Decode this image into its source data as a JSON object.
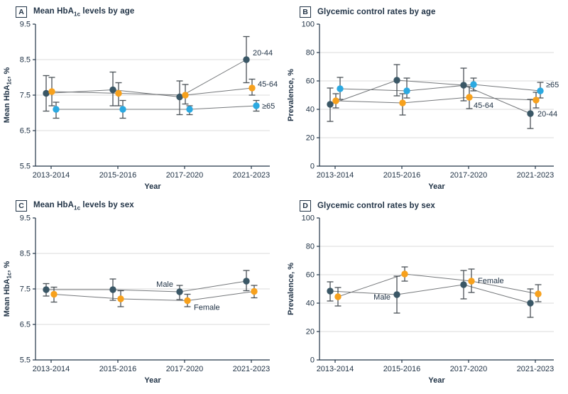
{
  "colors": {
    "series_dark": "#3A5766",
    "series_orange": "#F7A11D",
    "series_blue": "#2BA9E1",
    "error_bar": "#4A5257",
    "connector": "#75787B",
    "grid": "#DBDBDB",
    "axis": "#223447",
    "text": "#223447",
    "background": "#FFFFFF"
  },
  "chart_data": [
    {
      "type": "line",
      "panel": "A",
      "title": "Mean HbA1c levels by age",
      "xlabel": "Year",
      "ylabel": "Mean HbA1c, %",
      "ylim": [
        5.5,
        9.5
      ],
      "grid": true,
      "error_bars": true,
      "legend_position": "direct-labels",
      "yticks": [
        {
          "v": 9.5,
          "t": "9.5"
        },
        {
          "v": 8.5,
          "t": "8.5"
        },
        {
          "v": 7.5,
          "t": "7.5"
        },
        {
          "v": 6.5,
          "t": "6.5"
        },
        {
          "v": 5.5,
          "t": "5.5"
        }
      ],
      "categories": [
        "2013-2014",
        "2015-2016",
        "2017-2020",
        "2021-2023"
      ],
      "series": [
        {
          "name": "20-44",
          "color": "series_dark",
          "values": [
            7.55,
            7.65,
            7.45,
            8.5
          ],
          "ci_low": [
            7.05,
            7.2,
            6.95,
            7.85
          ],
          "ci_high": [
            8.05,
            8.15,
            7.9,
            9.15
          ],
          "label": {
            "at": 3,
            "dx": 9,
            "dy": -6,
            "anchor": "start"
          }
        },
        {
          "name": "45-64",
          "color": "series_orange",
          "values": [
            7.6,
            7.55,
            7.5,
            7.7
          ],
          "ci_low": [
            7.2,
            7.2,
            7.25,
            7.5
          ],
          "ci_high": [
            8.0,
            7.85,
            7.8,
            7.95
          ],
          "label": {
            "at": 3,
            "dx": 8,
            "dy": -2,
            "anchor": "start"
          }
        },
        {
          "name": "≥65",
          "color": "series_blue",
          "values": [
            7.1,
            7.1,
            7.1,
            7.2
          ],
          "ci_low": [
            6.85,
            6.85,
            6.95,
            7.05
          ],
          "ci_high": [
            7.3,
            7.35,
            7.2,
            7.35
          ],
          "label": {
            "at": 3,
            "dx": 8,
            "dy": 4,
            "anchor": "start"
          }
        }
      ]
    },
    {
      "type": "line",
      "panel": "B",
      "title": "Glycemic control rates by age",
      "xlabel": "Year",
      "ylabel": "Prevalence, %",
      "ylim": [
        0,
        100
      ],
      "grid": true,
      "error_bars": true,
      "legend_position": "direct-labels",
      "yticks": [
        {
          "v": 100,
          "t": "100"
        },
        {
          "v": 80,
          "t": "80"
        },
        {
          "v": 60,
          "t": "60"
        },
        {
          "v": 40,
          "t": "40"
        },
        {
          "v": 20,
          "t": "20"
        },
        {
          "v": 0,
          "t": "0"
        }
      ],
      "categories": [
        "2013-2014",
        "2015-2016",
        "2017-2020",
        "2021-2023"
      ],
      "series": [
        {
          "name": "20-44",
          "color": "series_dark",
          "values": [
            43.5,
            60.5,
            57,
            37
          ],
          "ci_low": [
            31.5,
            49.5,
            46,
            26.5
          ],
          "ci_high": [
            55,
            71.5,
            69,
            47
          ],
          "label": {
            "at": 3,
            "dx": 10,
            "dy": 4,
            "anchor": "start"
          }
        },
        {
          "name": "45-64",
          "color": "series_orange",
          "values": [
            46,
            44.5,
            48.5,
            46.5
          ],
          "ci_low": [
            41,
            36,
            40.5,
            41
          ],
          "ci_high": [
            51,
            51,
            56,
            52
          ],
          "label": {
            "at": 2,
            "dx": 6,
            "dy": 15,
            "anchor": "start"
          }
        },
        {
          "name": "≥65",
          "color": "series_blue",
          "values": [
            54.5,
            53,
            57.5,
            53
          ],
          "ci_low": [
            47,
            48,
            53,
            48
          ],
          "ci_high": [
            62.5,
            62,
            62,
            59
          ],
          "label": {
            "at": 3,
            "dx": 8,
            "dy": -5,
            "anchor": "start"
          }
        }
      ]
    },
    {
      "type": "line",
      "panel": "C",
      "title": "Mean HbA1c levels by sex",
      "xlabel": "Year",
      "ylabel": "Mean HbA1c, %",
      "ylim": [
        5.5,
        9.5
      ],
      "grid": true,
      "error_bars": true,
      "legend_position": "direct-labels",
      "yticks": [
        {
          "v": 9.5,
          "t": "9.5"
        },
        {
          "v": 8.5,
          "t": "8.5"
        },
        {
          "v": 7.5,
          "t": "7.5"
        },
        {
          "v": 6.5,
          "t": "6.5"
        },
        {
          "v": 5.5,
          "t": "5.5"
        }
      ],
      "categories": [
        "2013-2014",
        "2015-2016",
        "2017-2020",
        "2021-2023"
      ],
      "series": [
        {
          "name": "Male",
          "color": "series_dark",
          "values": [
            7.48,
            7.48,
            7.42,
            7.72
          ],
          "ci_low": [
            7.3,
            7.18,
            7.2,
            7.45
          ],
          "ci_high": [
            7.65,
            7.78,
            7.6,
            8.02
          ],
          "label": {
            "at": 2,
            "dx": -9,
            "dy": -7,
            "anchor": "end"
          }
        },
        {
          "name": "Female",
          "color": "series_orange",
          "values": [
            7.35,
            7.22,
            7.17,
            7.43
          ],
          "ci_low": [
            7.13,
            7.0,
            7.0,
            7.25
          ],
          "ci_high": [
            7.55,
            7.45,
            7.35,
            7.6
          ],
          "label": {
            "at": 2,
            "dx": 9,
            "dy": 13,
            "anchor": "start"
          }
        }
      ]
    },
    {
      "type": "line",
      "panel": "D",
      "title": "Glycemic control rates by sex",
      "xlabel": "Year",
      "ylabel": "Prevalence, %",
      "ylim": [
        0,
        100
      ],
      "grid": true,
      "error_bars": true,
      "legend_position": "direct-labels",
      "yticks": [
        {
          "v": 100,
          "t": "100"
        },
        {
          "v": 80,
          "t": "80"
        },
        {
          "v": 60,
          "t": "60"
        },
        {
          "v": 40,
          "t": "40"
        },
        {
          "v": 20,
          "t": "20"
        },
        {
          "v": 0,
          "t": "0"
        }
      ],
      "categories": [
        "2013-2014",
        "2015-2016",
        "2017-2020",
        "2021-2023"
      ],
      "series": [
        {
          "name": "Male",
          "color": "series_dark",
          "values": [
            48.5,
            46,
            53,
            40
          ],
          "ci_low": [
            41.5,
            33,
            43,
            30
          ],
          "ci_high": [
            55,
            59,
            63,
            50
          ],
          "label": {
            "at": 1,
            "dx": -9,
            "dy": 7,
            "anchor": "end"
          }
        },
        {
          "name": "Female",
          "color": "series_orange",
          "values": [
            44.5,
            60.5,
            55.5,
            46.5
          ],
          "ci_low": [
            38,
            55.5,
            47.5,
            41
          ],
          "ci_high": [
            51,
            65.5,
            64,
            53
          ],
          "label": {
            "at": 2,
            "dx": 9,
            "dy": 3,
            "anchor": "start"
          }
        }
      ]
    }
  ]
}
